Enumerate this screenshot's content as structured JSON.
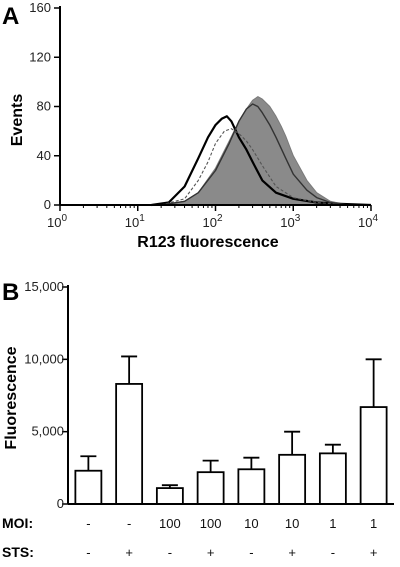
{
  "chart_data": [
    {
      "panel": "A",
      "type": "line",
      "xlabel": "R123 fluorescence",
      "ylabel": "Events",
      "xscale": "log",
      "xlim": [
        1,
        10000
      ],
      "ylim": [
        0,
        160
      ],
      "yticks": [
        "0",
        "40",
        "80",
        "120",
        "160"
      ],
      "xticks": [
        {
          "base": "10",
          "exp": "0"
        },
        {
          "base": "10",
          "exp": "1"
        },
        {
          "base": "10",
          "exp": "2"
        },
        {
          "base": "10",
          "exp": "3"
        },
        {
          "base": "10",
          "exp": "4"
        }
      ],
      "series": [
        {
          "style": "filled-gray",
          "x": [
            20,
            40,
            60,
            100,
            150,
            200,
            250,
            300,
            350,
            400,
            500,
            600,
            700,
            800,
            1000,
            1500,
            2000,
            3000,
            5000
          ],
          "y": [
            0,
            3,
            10,
            30,
            52,
            68,
            78,
            85,
            88,
            86,
            80,
            72,
            64,
            56,
            40,
            20,
            10,
            3,
            0
          ]
        },
        {
          "style": "thick-black",
          "x": [
            15,
            25,
            40,
            60,
            80,
            100,
            120,
            140,
            160,
            200,
            250,
            300,
            400,
            600,
            1000,
            2000,
            4000,
            10000
          ],
          "y": [
            0,
            2,
            15,
            38,
            55,
            65,
            70,
            72,
            68,
            55,
            45,
            35,
            20,
            10,
            5,
            2,
            1,
            0
          ]
        },
        {
          "style": "thin-dashed",
          "x": [
            20,
            40,
            60,
            80,
            100,
            130,
            160,
            200,
            250,
            300,
            400,
            600,
            1000,
            2000,
            5000
          ],
          "y": [
            0,
            5,
            20,
            35,
            50,
            60,
            62,
            58,
            52,
            45,
            32,
            15,
            6,
            2,
            0
          ]
        },
        {
          "style": "medium-dark",
          "x": [
            20,
            40,
            60,
            100,
            150,
            200,
            250,
            300,
            350,
            400,
            500,
            600,
            800,
            1000,
            1500,
            2000,
            3000,
            5000
          ],
          "y": [
            0,
            3,
            10,
            28,
            50,
            68,
            78,
            82,
            80,
            75,
            65,
            55,
            38,
            25,
            12,
            6,
            2,
            0
          ]
        }
      ]
    },
    {
      "panel": "B",
      "type": "bar",
      "ylabel": "Fluorescence",
      "ylim": [
        0,
        15000
      ],
      "yticks": [
        "0",
        "5,000",
        "10,000",
        "15,000"
      ],
      "values": [
        2300,
        8300,
        1100,
        2200,
        2400,
        3400,
        3500,
        6700
      ],
      "errors": [
        1000,
        1900,
        200,
        800,
        800,
        1600,
        600,
        3300
      ],
      "conditions": {
        "moi_label": "MOI:",
        "sts_label": "STS:",
        "moi": [
          "-",
          "-",
          "100",
          "100",
          "10",
          "10",
          "1",
          "1"
        ],
        "sts": [
          "-",
          "+",
          "-",
          "+",
          "-",
          "+",
          "-",
          "+"
        ]
      }
    }
  ],
  "panel_labels": [
    "A",
    "B"
  ]
}
